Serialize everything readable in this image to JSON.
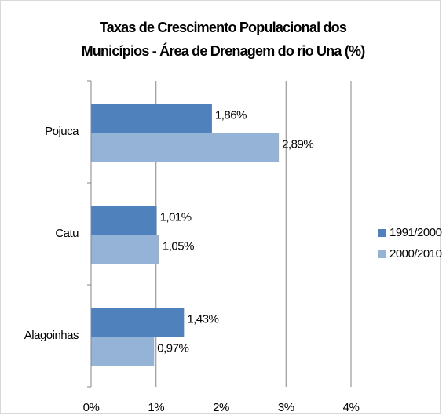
{
  "chart_data": {
    "type": "barh",
    "title": [
      "Taxas de Crescimento Populacional dos",
      "Municípios - Área de Drenagem do rio Una (%)"
    ],
    "categories": [
      "Pojuca",
      "Catu",
      "Alagoinhas"
    ],
    "series": [
      {
        "name": "1991/2000",
        "color": "#4f81bd",
        "values": [
          1.86,
          1.01,
          1.43
        ],
        "value_labels": [
          "1,86%",
          "1,01%",
          "1,43%"
        ]
      },
      {
        "name": "2000/2010",
        "color": "#95b3d7",
        "values": [
          2.89,
          1.05,
          0.97
        ],
        "value_labels": [
          "2,89%",
          "1,05%",
          "0,97%"
        ]
      }
    ],
    "xlim": [
      0,
      4
    ],
    "xticks": [
      {
        "value": 0,
        "label": "0%"
      },
      {
        "value": 1,
        "label": "1%"
      },
      {
        "value": 2,
        "label": "2%"
      },
      {
        "value": 3,
        "label": "3%"
      },
      {
        "value": 4,
        "label": "4%"
      }
    ],
    "grid": true,
    "legend": "right"
  }
}
